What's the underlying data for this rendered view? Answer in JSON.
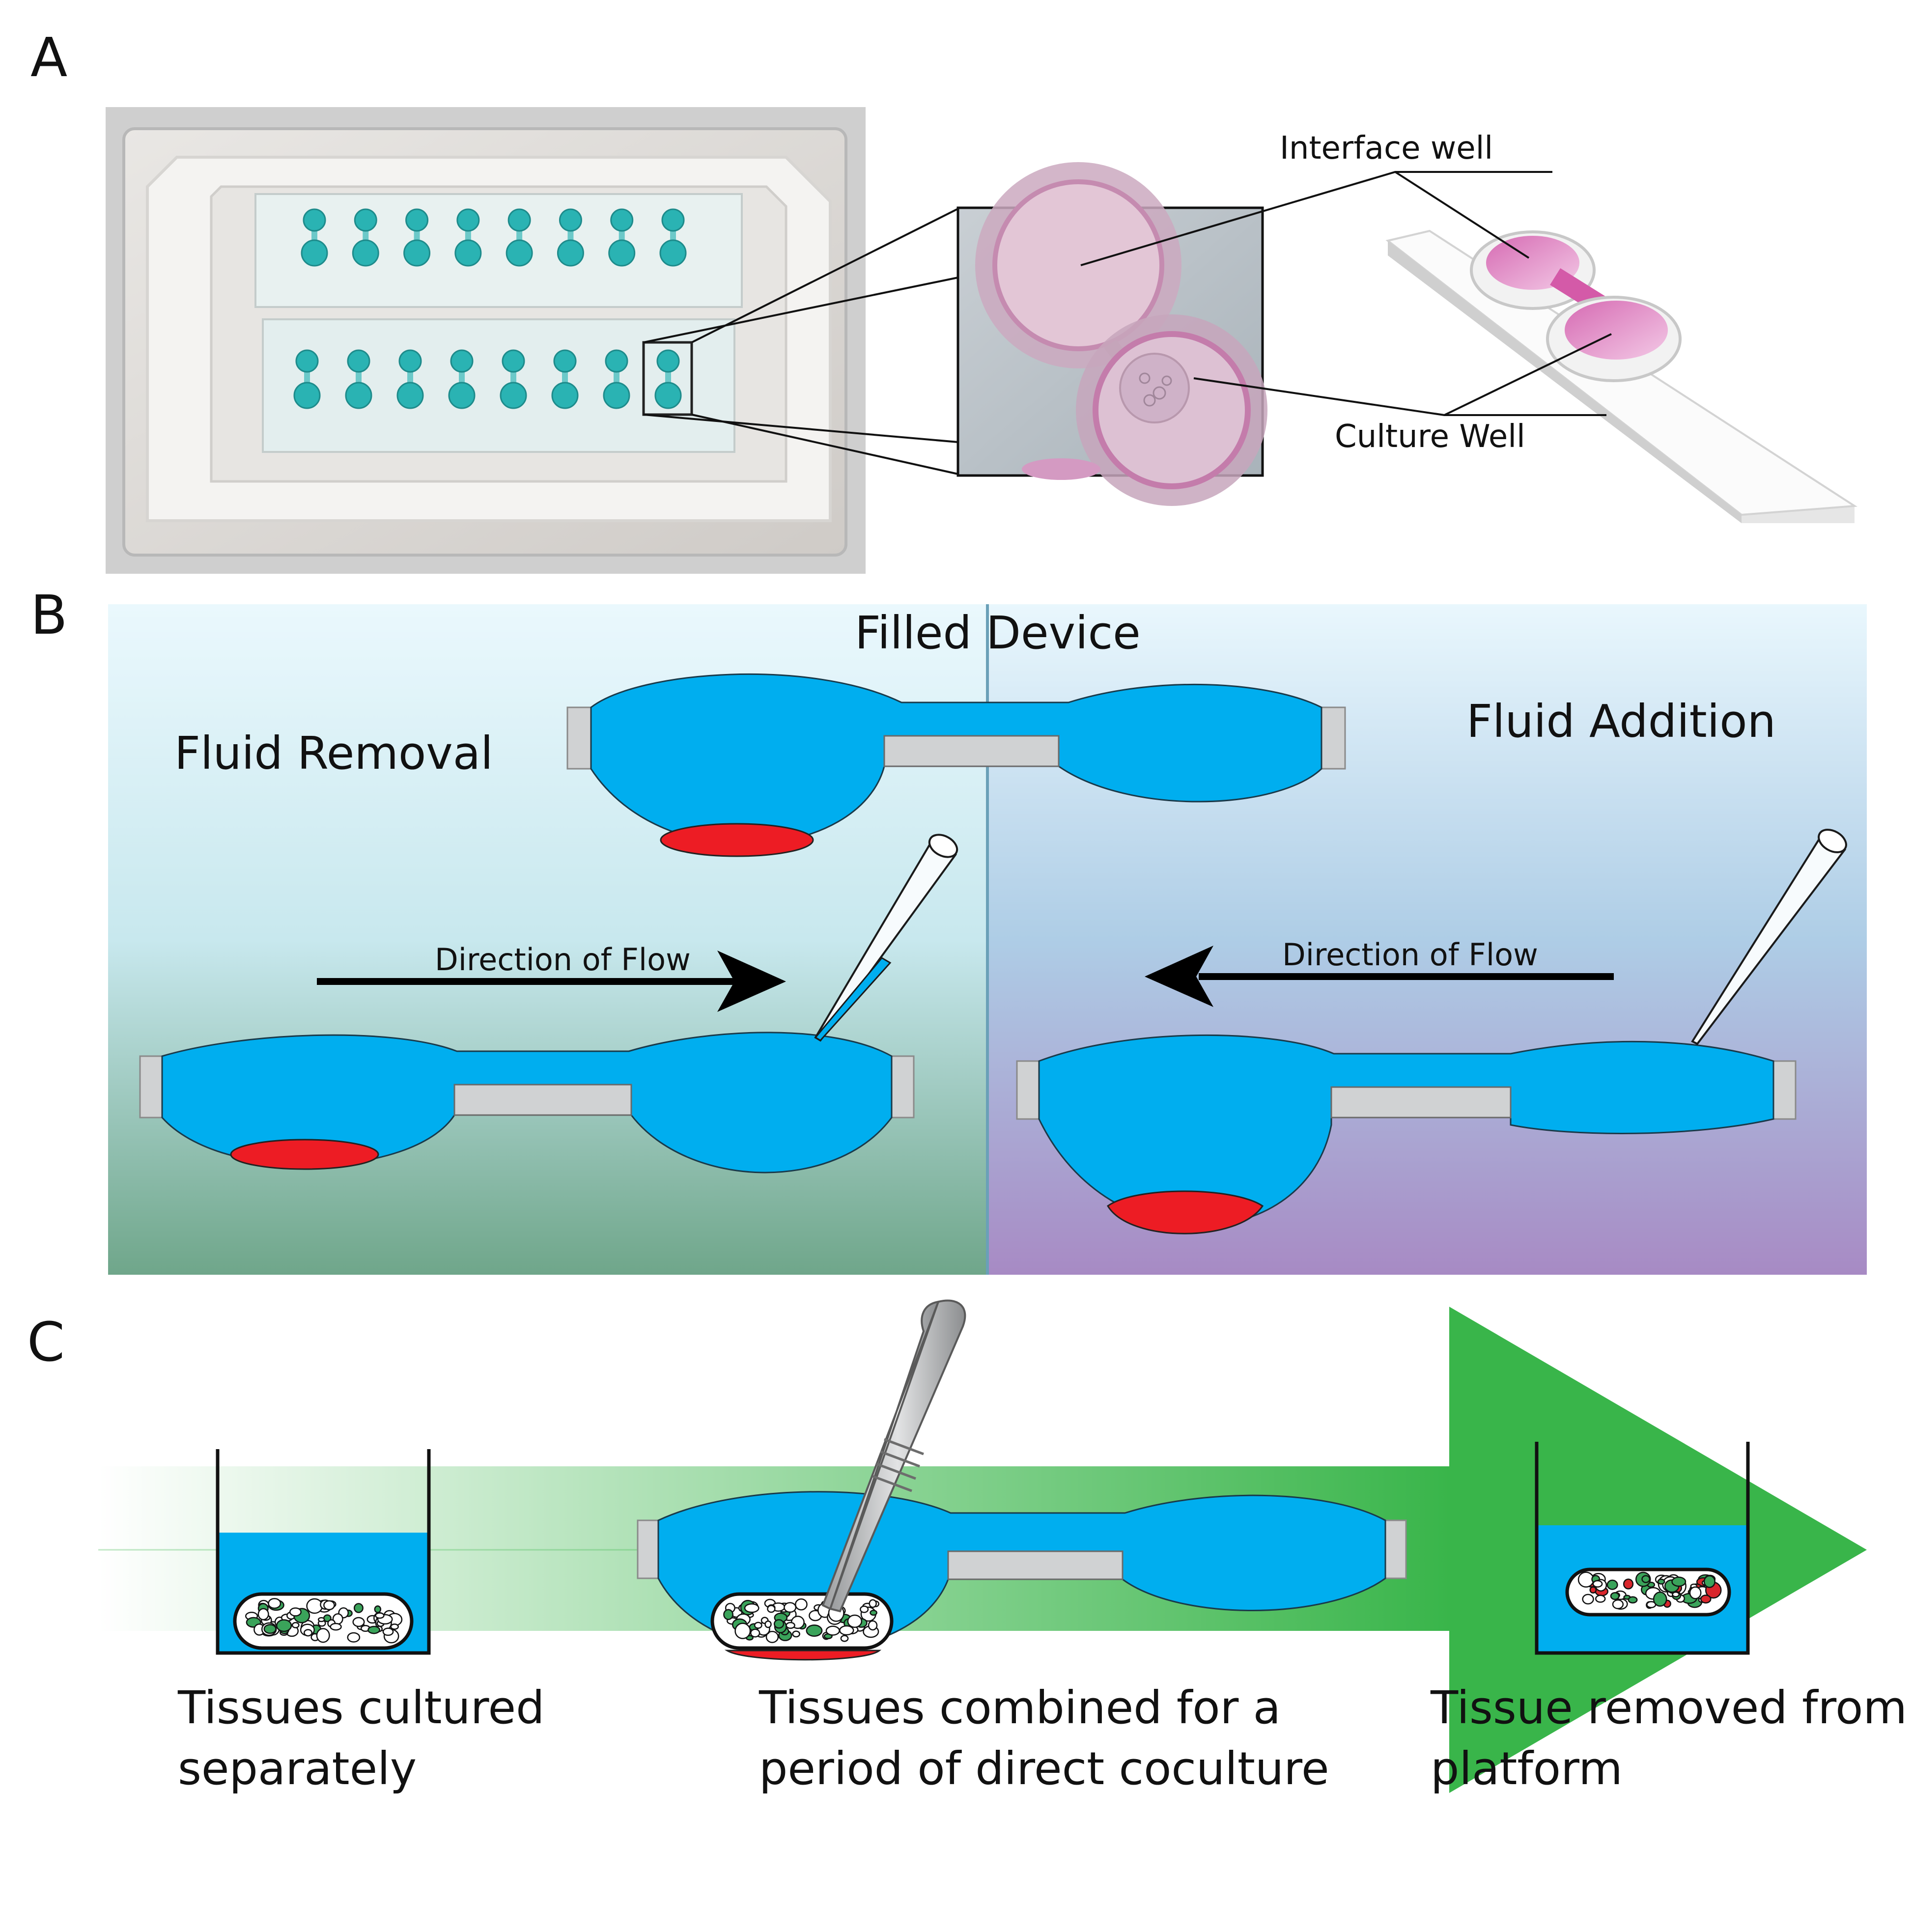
{
  "panel_a": {
    "letter": "A",
    "labels": {
      "interface_well": "Interface well",
      "culture_well": "Culture Well"
    }
  },
  "panel_b": {
    "letter": "B",
    "filled_device": "Filled Device",
    "fluid_removal": "Fluid Removal",
    "fluid_addition": "Fluid Addition",
    "direction_left": "Direction of Flow",
    "direction_right": "Direction of Flow"
  },
  "panel_c": {
    "letter": "C",
    "caption_1": [
      "Tissues cultured",
      "separately"
    ],
    "caption_2": [
      "Tissues combined for a",
      "period of direct coculture"
    ],
    "caption_3": [
      "Tissue removed from",
      "platform"
    ]
  },
  "colors": {
    "fluid": "#00AEEF",
    "tissue": "#ED1C24",
    "device_gray": "#D0D2D3",
    "arrow_green": "#39B54A",
    "well_dye": "#2AB3B3",
    "pink": "#D98CC0"
  }
}
